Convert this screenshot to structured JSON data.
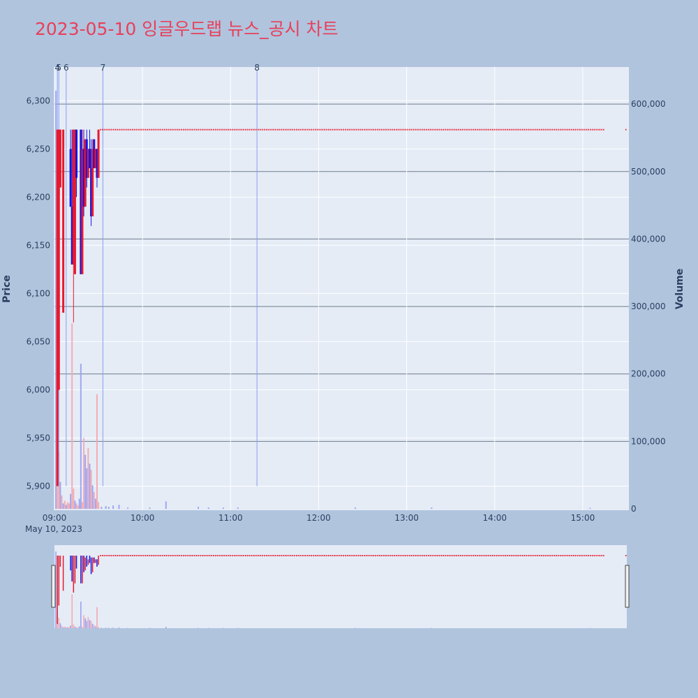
{
  "title": "2023-05-10 잉글우드랩 뉴스_공시 차트",
  "chart_data": {
    "type": "candlestick",
    "xlabel_sub": "May 10, 2023",
    "x_ticks": [
      "09:00",
      "10:00",
      "11:00",
      "12:00",
      "13:00",
      "14:00",
      "15:00"
    ],
    "x_range": [
      "09:00",
      "15:30"
    ],
    "y_left": {
      "label": "Price",
      "range": [
        5875,
        6335
      ],
      "ticks": [
        5900,
        5950,
        6000,
        6050,
        6100,
        6150,
        6200,
        6250,
        6300
      ],
      "tick_labels": [
        "5,900",
        "5,950",
        "6,000",
        "6,050",
        "6,100",
        "6,150",
        "6,200",
        "6,250",
        "6,300"
      ]
    },
    "y_right": {
      "label": "Volume",
      "range": [
        0,
        655000
      ],
      "ticks": [
        0,
        100000,
        200000,
        300000,
        400000,
        500000,
        600000
      ],
      "tick_labels": [
        "0",
        "100,000",
        "200,000",
        "300,000",
        "400,000",
        "500,000",
        "600,000"
      ]
    },
    "markers": [
      {
        "label": "4",
        "time": "09:02"
      },
      {
        "label": "5",
        "time": "09:03"
      },
      {
        "label": "6",
        "time": "09:08"
      },
      {
        "label": "7",
        "time": "09:33"
      },
      {
        "label": "8",
        "time": "11:18"
      }
    ],
    "candles": [
      {
        "time": "09:02",
        "open": 5900,
        "high": 6270,
        "low": 5900,
        "close": 6270
      },
      {
        "time": "09:03",
        "open": 6000,
        "high": 6270,
        "low": 6000,
        "close": 6270
      },
      {
        "time": "09:04",
        "open": 6210,
        "high": 6270,
        "low": 6210,
        "close": 6270
      },
      {
        "time": "09:06",
        "open": 6080,
        "high": 6270,
        "low": 6080,
        "close": 6270
      },
      {
        "time": "09:11",
        "open": 6250,
        "high": 6270,
        "low": 6190,
        "close": 6190
      },
      {
        "time": "09:12",
        "open": 6190,
        "high": 6270,
        "low": 6130,
        "close": 6130
      },
      {
        "time": "09:13",
        "open": 6130,
        "high": 6270,
        "low": 6070,
        "close": 6270
      },
      {
        "time": "09:14",
        "open": 6120,
        "high": 6270,
        "low": 6120,
        "close": 6270
      },
      {
        "time": "09:15",
        "open": 6270,
        "high": 6270,
        "low": 6200,
        "close": 6220
      },
      {
        "time": "09:18",
        "open": 6270,
        "high": 6270,
        "low": 6120,
        "close": 6120
      },
      {
        "time": "09:19",
        "open": 6120,
        "high": 6270,
        "low": 6120,
        "close": 6250
      },
      {
        "time": "09:20",
        "open": 6250,
        "high": 6270,
        "low": 6180,
        "close": 6190
      },
      {
        "time": "09:21",
        "open": 6190,
        "high": 6260,
        "low": 6190,
        "close": 6260
      },
      {
        "time": "09:22",
        "open": 6260,
        "high": 6270,
        "low": 6210,
        "close": 6220
      },
      {
        "time": "09:23",
        "open": 6220,
        "high": 6250,
        "low": 6220,
        "close": 6250
      },
      {
        "time": "09:24",
        "open": 6250,
        "high": 6270,
        "low": 6230,
        "close": 6230
      },
      {
        "time": "09:25",
        "open": 6230,
        "high": 6260,
        "low": 6170,
        "close": 6180
      },
      {
        "time": "09:26",
        "open": 6180,
        "high": 6260,
        "low": 6180,
        "close": 6250
      },
      {
        "time": "09:27",
        "open": 6260,
        "high": 6260,
        "low": 6230,
        "close": 6230
      },
      {
        "time": "09:28",
        "open": 6230,
        "high": 6250,
        "low": 6230,
        "close": 6250
      },
      {
        "time": "09:29",
        "open": 6250,
        "high": 6250,
        "low": 6210,
        "close": 6220
      },
      {
        "time": "09:30",
        "open": 6220,
        "high": 6270,
        "low": 6220,
        "close": 6270
      }
    ],
    "flat_price": 6270,
    "flat_segments": [
      [
        "09:31",
        "15:15"
      ],
      [
        "15:29",
        "15:30"
      ]
    ],
    "volumes": [
      {
        "time": "09:01",
        "value": 620000,
        "color": "blue"
      },
      {
        "time": "09:02",
        "value": 115000,
        "color": "red"
      },
      {
        "time": "09:03",
        "value": 85000,
        "color": "red"
      },
      {
        "time": "09:04",
        "value": 40000,
        "color": "blue"
      },
      {
        "time": "09:05",
        "value": 20000,
        "color": "red"
      },
      {
        "time": "09:06",
        "value": 8000,
        "color": "blue"
      },
      {
        "time": "09:07",
        "value": 12000,
        "color": "red"
      },
      {
        "time": "09:08",
        "value": 6000,
        "color": "blue"
      },
      {
        "time": "09:09",
        "value": 10000,
        "color": "red"
      },
      {
        "time": "09:10",
        "value": 8000,
        "color": "red"
      },
      {
        "time": "09:11",
        "value": 22000,
        "color": "blue"
      },
      {
        "time": "09:12",
        "value": 275000,
        "color": "red"
      },
      {
        "time": "09:13",
        "value": 30000,
        "color": "red"
      },
      {
        "time": "09:14",
        "value": 12000,
        "color": "blue"
      },
      {
        "time": "09:15",
        "value": 8000,
        "color": "red"
      },
      {
        "time": "09:16",
        "value": 5000,
        "color": "red"
      },
      {
        "time": "09:17",
        "value": 15000,
        "color": "blue"
      },
      {
        "time": "09:18",
        "value": 215000,
        "color": "blue"
      },
      {
        "time": "09:19",
        "value": 10000,
        "color": "red"
      },
      {
        "time": "09:20",
        "value": 105000,
        "color": "red"
      },
      {
        "time": "09:21",
        "value": 80000,
        "color": "blue"
      },
      {
        "time": "09:22",
        "value": 60000,
        "color": "blue"
      },
      {
        "time": "09:23",
        "value": 90000,
        "color": "red"
      },
      {
        "time": "09:24",
        "value": 67000,
        "color": "blue"
      },
      {
        "time": "09:25",
        "value": 58000,
        "color": "red"
      },
      {
        "time": "09:26",
        "value": 35000,
        "color": "blue"
      },
      {
        "time": "09:27",
        "value": 25000,
        "color": "red"
      },
      {
        "time": "09:28",
        "value": 15000,
        "color": "blue"
      },
      {
        "time": "09:29",
        "value": 170000,
        "color": "red"
      },
      {
        "time": "09:30",
        "value": 10000,
        "color": "red"
      },
      {
        "time": "09:32",
        "value": 3000,
        "color": "blue"
      },
      {
        "time": "09:35",
        "value": 4000,
        "color": "blue"
      },
      {
        "time": "09:37",
        "value": 3000,
        "color": "blue"
      },
      {
        "time": "09:40",
        "value": 5000,
        "color": "blue"
      },
      {
        "time": "09:44",
        "value": 6000,
        "color": "blue"
      },
      {
        "time": "09:50",
        "value": 2000,
        "color": "blue"
      },
      {
        "time": "10:05",
        "value": 2000,
        "color": "blue"
      },
      {
        "time": "10:16",
        "value": 11000,
        "color": "blue"
      },
      {
        "time": "10:38",
        "value": 3000,
        "color": "blue"
      },
      {
        "time": "10:45",
        "value": 2000,
        "color": "blue"
      },
      {
        "time": "10:55",
        "value": 2000,
        "color": "blue"
      },
      {
        "time": "11:05",
        "value": 2000,
        "color": "blue"
      },
      {
        "time": "12:25",
        "value": 2000,
        "color": "blue"
      },
      {
        "time": "13:17",
        "value": 2000,
        "color": "blue"
      },
      {
        "time": "15:05",
        "value": 1500,
        "color": "blue"
      }
    ]
  }
}
